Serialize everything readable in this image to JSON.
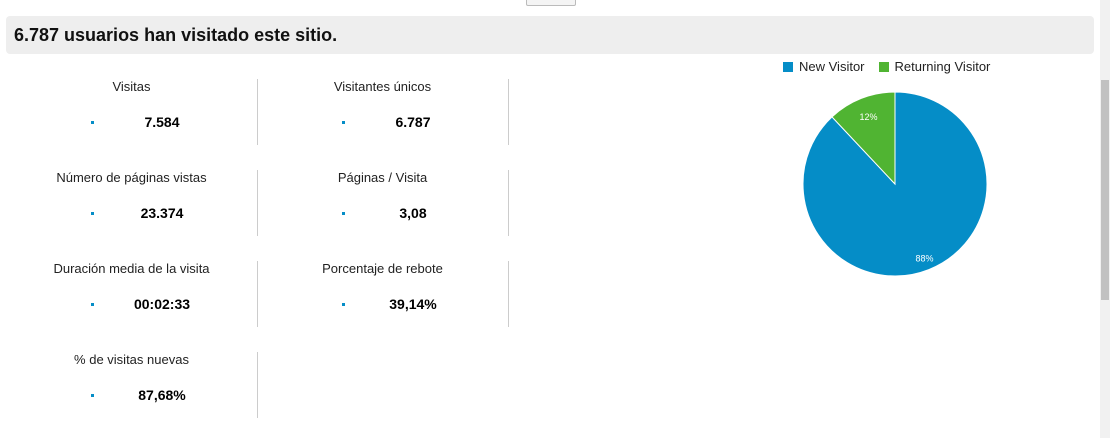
{
  "header": {
    "title": "6.787 usuarios han visitado este sitio."
  },
  "metrics": [
    {
      "label": "Visitas",
      "value": "7.584"
    },
    {
      "label": "Visitantes únicos",
      "value": "6.787"
    },
    {
      "label": "Número de páginas vistas",
      "value": "23.374"
    },
    {
      "label": "Páginas / Visita",
      "value": "3,08"
    },
    {
      "label": "Duración media de la visita",
      "value": "00:02:33"
    },
    {
      "label": "Porcentaje de rebote",
      "value": "39,14%"
    },
    {
      "label": "% de visitas nuevas",
      "value": "87,68%"
    }
  ],
  "chart_data": {
    "type": "pie",
    "legend_placement": "top",
    "series": [
      {
        "name": "New Visitor",
        "value": 88,
        "label": "88%",
        "color": "#058dc7"
      },
      {
        "name": "Returning Visitor",
        "value": 12,
        "label": "12%",
        "color": "#50b432"
      }
    ]
  }
}
